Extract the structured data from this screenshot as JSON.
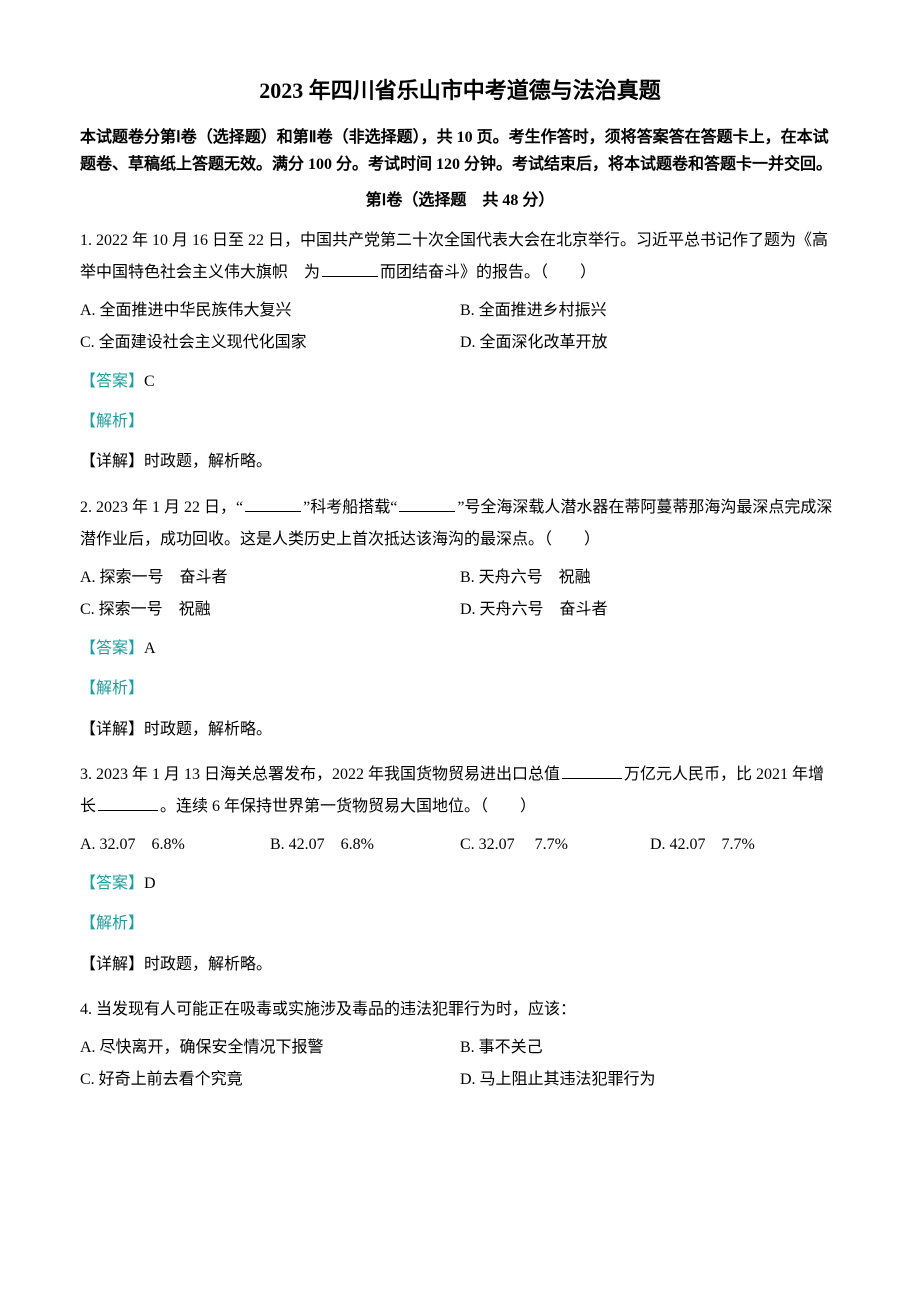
{
  "title": "2023 年四川省乐山市中考道德与法治真题",
  "instructions": "本试题卷分第Ⅰ卷（选择题）和第Ⅱ卷（非选择题），共 10 页。考生作答时，须将答案答在答题卡上，在本试题卷、草稿纸上答题无效。满分 100 分。考试时间 120 分钟。考试结束后，将本试题卷和答题卡一并交回。",
  "section_header": "第Ⅰ卷（选择题　共 48 分）",
  "q1": {
    "stem_part1": "1. 2022 年 10 月 16 日至 22 日，中国共产党第二十次全国代表大会在北京举行。习近平总书记作了题为《高举中国特色社会主义伟大旗帜　为",
    "stem_part2": "而团结奋斗》的报告。（　　）",
    "optA": "A. 全面推进中华民族伟大复兴",
    "optB": "B. 全面推进乡村振兴",
    "optC": "C. 全面建设社会主义现代化国家",
    "optD": "D. 全面深化改革开放",
    "answer_label": "【答案】",
    "answer": "C",
    "analysis_label": "【解析】",
    "detail": "【详解】时政题，解析略。"
  },
  "q2": {
    "stem_part1": "2. 2023 年 1 月 22 日，“",
    "stem_part2": "”科考船搭载“",
    "stem_part3": "”号全海深载人潜水器在蒂阿蔓蒂那海沟最深点完成深潜作业后，成功回收。这是人类历史上首次抵达该海沟的最深点。（　　）",
    "optA": "A. 探索一号　奋斗者",
    "optB": "B. 天舟六号　祝融",
    "optC": "C. 探索一号　祝融",
    "optD": "D. 天舟六号　奋斗者",
    "answer_label": "【答案】",
    "answer": "A",
    "analysis_label": "【解析】",
    "detail": "【详解】时政题，解析略。"
  },
  "q3": {
    "stem_part1": "3. 2023 年 1 月 13 日海关总署发布，2022 年我国货物贸易进出口总值",
    "stem_part2": "万亿元人民币，比 2021 年增长",
    "stem_part3": "。连续 6 年保持世界第一货物贸易大国地位。（　　）",
    "optA": "A. 32.07　6.8%",
    "optB": "B. 42.07　6.8%",
    "optC": "C. 32.07　  7.7%",
    "optD": "D. 42.07　7.7%",
    "answer_label": "【答案】",
    "answer": "D",
    "analysis_label": "【解析】",
    "detail": "【详解】时政题，解析略。"
  },
  "q4": {
    "stem": "4. 当发现有人可能正在吸毒或实施涉及毒品的违法犯罪行为时，应该：",
    "optA": "A. 尽快离开，确保安全情况下报警",
    "optB": "B. 事不关己",
    "optC": "C. 好奇上前去看个究竟",
    "optD": "D. 马上阻止其违法犯罪行为"
  }
}
